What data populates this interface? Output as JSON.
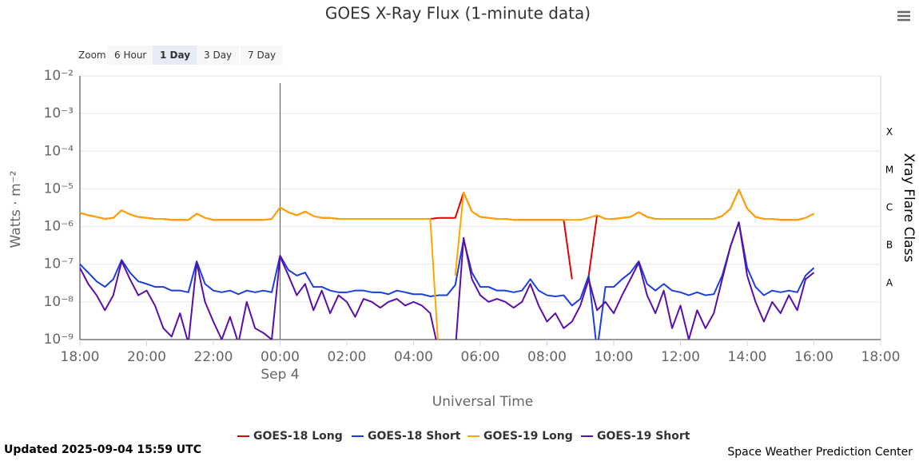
{
  "chart_data": {
    "type": "line",
    "title": "GOES X-Ray Flux (1-minute data)",
    "x_label": "Universal Time",
    "y_label": "Watts · m⁻²",
    "y2_label": "Xray Flare Class",
    "x": [
      -6,
      -5.75,
      -5.5,
      -5.25,
      -5,
      -4.75,
      -4.5,
      -4.25,
      -4,
      -3.75,
      -3.5,
      -3.25,
      -3,
      -2.75,
      -2.5,
      -2.25,
      -2,
      -1.75,
      -1.5,
      -1.25,
      -1,
      -0.75,
      -0.5,
      -0.25,
      0,
      0.25,
      0.5,
      0.75,
      1,
      1.25,
      1.5,
      1.75,
      2,
      2.25,
      2.5,
      2.75,
      3,
      3.25,
      3.5,
      3.75,
      4,
      4.25,
      4.5,
      4.75,
      5,
      5.25,
      5.5,
      5.75,
      6,
      6.25,
      6.5,
      6.75,
      7,
      7.25,
      7.5,
      7.75,
      8,
      8.25,
      8.5,
      8.75,
      9,
      9.25,
      9.5,
      9.75,
      10,
      10.25,
      10.5,
      10.75,
      11,
      11.25,
      11.5,
      11.75,
      12,
      12.25,
      12.5,
      12.75,
      13,
      13.25,
      13.5,
      13.75,
      14,
      14.25,
      14.5,
      14.75,
      15,
      15.25,
      15.5,
      15.75,
      16
    ],
    "xlim": [
      -6,
      18
    ],
    "xticks": [
      {
        "value": -6,
        "label": "18:00"
      },
      {
        "value": -4,
        "label": "20:00"
      },
      {
        "value": -2,
        "label": "22:00"
      },
      {
        "value": 0,
        "label": "00:00"
      },
      {
        "value": 2,
        "label": "02:00"
      },
      {
        "value": 4,
        "label": "04:00"
      },
      {
        "value": 6,
        "label": "06:00"
      },
      {
        "value": 8,
        "label": "08:00"
      },
      {
        "value": 10,
        "label": "10:00"
      },
      {
        "value": 12,
        "label": "12:00"
      },
      {
        "value": 14,
        "label": "14:00"
      },
      {
        "value": 16,
        "label": "16:00"
      },
      {
        "value": 18,
        "label": "18:00"
      }
    ],
    "x_date_labels": [
      {
        "value": 0,
        "label": "Sep 4"
      }
    ],
    "ylim": [
      1e-09,
      0.01
    ],
    "yscale": "log",
    "grid": true,
    "yticks": [
      {
        "value": 1e-09,
        "label": "10⁻⁹"
      },
      {
        "value": 1e-08,
        "label": "10⁻⁸"
      },
      {
        "value": 1e-07,
        "label": "10⁻⁷"
      },
      {
        "value": 1e-06,
        "label": "10⁻⁶"
      },
      {
        "value": 1e-05,
        "label": "10⁻⁵"
      },
      {
        "value": 0.0001,
        "label": "10⁻⁴"
      },
      {
        "value": 0.001,
        "label": "10⁻³"
      },
      {
        "value": 0.01,
        "label": "10⁻²"
      }
    ],
    "flare_classes": [
      {
        "value": 3.16e-08,
        "label": "A"
      },
      {
        "value": 3.16e-07,
        "label": "B"
      },
      {
        "value": 3.16e-06,
        "label": "C"
      },
      {
        "value": 3.16e-05,
        "label": "M"
      },
      {
        "value": 0.000316,
        "label": "X"
      }
    ],
    "legend": "bottom",
    "series": [
      {
        "name": "GOES-18 Long",
        "color": "#e00000",
        "values": [
          2.3e-06,
          2e-06,
          1.8e-06,
          1.6e-06,
          1.7e-06,
          2.7e-06,
          2.1e-06,
          1.8e-06,
          1.7e-06,
          1.6e-06,
          1.6e-06,
          1.5e-06,
          1.5e-06,
          1.5e-06,
          2.2e-06,
          1.7e-06,
          1.5e-06,
          1.5e-06,
          1.5e-06,
          1.5e-06,
          1.5e-06,
          1.5e-06,
          1.5e-06,
          1.6e-06,
          3.2e-06,
          2.4e-06,
          2e-06,
          2.5e-06,
          1.9e-06,
          1.7e-06,
          1.7e-06,
          1.6e-06,
          1.6e-06,
          1.6e-06,
          1.6e-06,
          1.6e-06,
          1.6e-06,
          1.6e-06,
          1.6e-06,
          1.6e-06,
          1.6e-06,
          1.6e-06,
          1.6e-06,
          1.7e-06,
          1.7e-06,
          1.7e-06,
          8e-06,
          2.5e-06,
          1.8e-06,
          1.7e-06,
          1.6e-06,
          1.6e-06,
          1.5e-06,
          1.5e-06,
          1.5e-06,
          1.5e-06,
          1.5e-06,
          1.5e-06,
          1.5e-06,
          4e-08,
          null,
          5e-08,
          2e-06,
          1.6e-06,
          1.6e-06,
          1.7e-06,
          1.8e-06,
          2.4e-06,
          1.8e-06,
          1.6e-06,
          1.6e-06,
          1.6e-06,
          1.6e-06,
          1.6e-06,
          1.6e-06,
          1.6e-06,
          1.6e-06,
          1.9e-06,
          3e-06,
          9.5e-06,
          3e-06,
          1.8e-06,
          1.6e-06,
          1.6e-06,
          1.5e-06,
          1.5e-06,
          1.5e-06,
          1.7e-06,
          2.2e-06
        ]
      },
      {
        "name": "GOES-18 Short",
        "color": "#1a3fe0",
        "values": [
          1e-07,
          6e-08,
          3.5e-08,
          2.5e-08,
          4e-08,
          1.3e-07,
          6e-08,
          3.5e-08,
          3e-08,
          2.5e-08,
          2.5e-08,
          2e-08,
          2e-08,
          1.8e-08,
          1.2e-07,
          3e-08,
          2e-08,
          1.8e-08,
          2e-08,
          1.6e-08,
          2e-08,
          1.8e-08,
          2e-08,
          1.8e-08,
          1.7e-07,
          7e-08,
          5e-08,
          6e-08,
          2.5e-08,
          2.5e-08,
          2e-08,
          1.8e-08,
          1.8e-08,
          2e-08,
          2e-08,
          1.8e-08,
          1.8e-08,
          1.6e-08,
          2e-08,
          1.8e-08,
          1.6e-08,
          1.6e-08,
          1.4e-08,
          1.5e-08,
          1.5e-08,
          2.8e-08,
          4.5e-07,
          6e-08,
          2.5e-08,
          2.5e-08,
          2e-08,
          2e-08,
          1.8e-08,
          2e-08,
          4e-08,
          2e-08,
          1.5e-08,
          1.4e-08,
          1.5e-08,
          8e-09,
          1.2e-08,
          5e-08,
          5e-10,
          2.5e-08,
          2.5e-08,
          4e-08,
          6e-08,
          1.2e-07,
          3e-08,
          2e-08,
          3e-08,
          2e-08,
          1.8e-08,
          1.5e-08,
          1.8e-08,
          1.5e-08,
          1.6e-08,
          5e-08,
          3e-07,
          1.3e-06,
          8e-08,
          2.5e-08,
          1.5e-08,
          2e-08,
          1.8e-08,
          2e-08,
          1.8e-08,
          5e-08,
          8e-08
        ]
      },
      {
        "name": "GOES-19 Long",
        "color": "#ffa500",
        "values": [
          2.3e-06,
          2e-06,
          1.8e-06,
          1.6e-06,
          1.7e-06,
          2.7e-06,
          2.1e-06,
          1.8e-06,
          1.7e-06,
          1.6e-06,
          1.6e-06,
          1.5e-06,
          1.5e-06,
          1.5e-06,
          2.2e-06,
          1.7e-06,
          1.5e-06,
          1.5e-06,
          1.5e-06,
          1.5e-06,
          1.5e-06,
          1.5e-06,
          1.5e-06,
          1.6e-06,
          3.2e-06,
          2.4e-06,
          2e-06,
          2.5e-06,
          1.9e-06,
          1.7e-06,
          1.7e-06,
          1.6e-06,
          1.6e-06,
          1.6e-06,
          1.6e-06,
          1.6e-06,
          1.6e-06,
          1.6e-06,
          1.6e-06,
          1.6e-06,
          1.6e-06,
          1.6e-06,
          1.6e-06,
          5e-10,
          null,
          5e-08,
          8e-06,
          2.5e-06,
          1.8e-06,
          1.7e-06,
          1.6e-06,
          1.6e-06,
          1.5e-06,
          1.5e-06,
          1.5e-06,
          1.5e-06,
          1.5e-06,
          1.5e-06,
          1.5e-06,
          1.5e-06,
          1.5e-06,
          1.7e-06,
          2e-06,
          1.6e-06,
          1.6e-06,
          1.7e-06,
          1.8e-06,
          2.4e-06,
          1.8e-06,
          1.6e-06,
          1.6e-06,
          1.6e-06,
          1.6e-06,
          1.6e-06,
          1.6e-06,
          1.6e-06,
          1.6e-06,
          1.9e-06,
          3e-06,
          9.5e-06,
          3e-06,
          1.8e-06,
          1.6e-06,
          1.6e-06,
          1.5e-06,
          1.5e-06,
          1.5e-06,
          1.7e-06,
          2.2e-06
        ]
      },
      {
        "name": "GOES-19 Short",
        "color": "#5a0fa8",
        "values": [
          8e-08,
          3e-08,
          1.5e-08,
          6e-09,
          1.5e-08,
          1.2e-07,
          4e-08,
          1.5e-08,
          2e-08,
          8e-09,
          2e-09,
          1.2e-09,
          5e-09,
          8e-10,
          1.1e-07,
          1e-08,
          3e-09,
          1e-09,
          4e-09,
          8e-10,
          1e-08,
          2e-09,
          1.5e-09,
          1e-09,
          1.6e-07,
          5e-08,
          1.5e-08,
          3e-08,
          6e-09,
          2e-08,
          5e-09,
          1.5e-08,
          1e-08,
          4e-09,
          1.2e-08,
          1e-08,
          7e-09,
          1e-08,
          1.2e-08,
          8e-09,
          1e-08,
          8e-09,
          5e-09,
          5e-10,
          null,
          5e-10,
          5e-07,
          4e-08,
          1.5e-08,
          1e-08,
          1.2e-08,
          1e-08,
          7e-09,
          1e-08,
          3e-08,
          8e-09,
          3e-09,
          5e-09,
          2e-09,
          3e-09,
          8e-09,
          4e-08,
          6e-09,
          1e-08,
          5e-09,
          1.5e-08,
          4e-08,
          1.1e-07,
          1.5e-08,
          5e-09,
          2e-08,
          2e-09,
          8e-09,
          1e-09,
          6e-09,
          2e-09,
          5e-09,
          4e-08,
          3e-07,
          1.3e-06,
          5e-08,
          1e-08,
          3e-09,
          1e-08,
          5e-09,
          1.5e-08,
          6e-09,
          4e-08,
          6e-08
        ]
      }
    ]
  },
  "ui": {
    "zoom_label": "Zoom",
    "zoom_buttons": [
      "6 Hour",
      "1 Day",
      "3 Day",
      "7 Day"
    ],
    "selected_zoom": "1 Day"
  },
  "footer": {
    "updated": "Updated 2025-09-04 15:59 UTC",
    "credit": "Space Weather Prediction Center"
  }
}
